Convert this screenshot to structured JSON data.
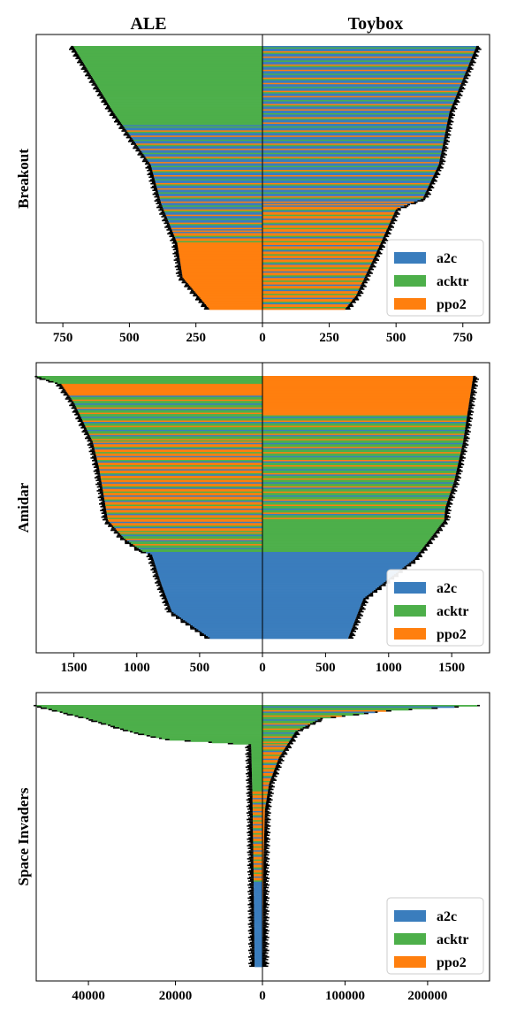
{
  "chart_data": [
    {
      "type": "bar",
      "orientation": "horizontal-butterfly",
      "game": "Breakout",
      "column_titles": [
        "ALE",
        "Toybox"
      ],
      "ylabel": "Breakout",
      "xlim": [
        -850,
        850
      ],
      "x_ticks": [
        {
          "value": -750,
          "label": "750"
        },
        {
          "value": -500,
          "label": "500"
        },
        {
          "value": -250,
          "label": "250"
        },
        {
          "value": 0,
          "label": "0"
        },
        {
          "value": 250,
          "label": "250"
        },
        {
          "value": 500,
          "label": "500"
        },
        {
          "value": 750,
          "label": "750"
        }
      ],
      "legend": {
        "location": "lower-right",
        "entries": [
          "a2c",
          "acktr",
          "ppo2"
        ]
      },
      "colors": {
        "a2c": "#3a7dbd",
        "acktr": "#4daf4a",
        "ppo2": "#ff7f0e",
        "error": "#000000"
      },
      "n_rows": 200,
      "ale": {
        "profile": [
          [
            0,
            -710
          ],
          [
            0.1,
            -650
          ],
          [
            0.25,
            -560
          ],
          [
            0.45,
            -420
          ],
          [
            0.6,
            -380
          ],
          [
            0.75,
            -320
          ],
          [
            0.88,
            -300
          ],
          [
            1,
            -200
          ]
        ],
        "bands": [
          [
            0,
            0.3,
            "acktr"
          ],
          [
            0.3,
            0.7,
            "mix_a2c"
          ],
          [
            0.7,
            0.75,
            "mix_ppo2"
          ],
          [
            0.75,
            1,
            "ppo2"
          ]
        ]
      },
      "toybox": {
        "profile": [
          [
            0,
            800
          ],
          [
            0.1,
            760
          ],
          [
            0.25,
            700
          ],
          [
            0.45,
            660
          ],
          [
            0.58,
            600
          ],
          [
            0.62,
            500
          ],
          [
            0.8,
            420
          ],
          [
            0.95,
            350
          ],
          [
            1,
            310
          ]
        ],
        "bands": [
          [
            0,
            0.6,
            "mix_a2c"
          ],
          [
            0.6,
            1,
            "mix_ppo2"
          ]
        ]
      }
    },
    {
      "type": "bar",
      "orientation": "horizontal-butterfly",
      "game": "Amidar",
      "ylabel": "Amidar",
      "xlim": [
        -1800,
        1800
      ],
      "x_ticks": [
        {
          "value": -1500,
          "label": "1500"
        },
        {
          "value": -1000,
          "label": "1000"
        },
        {
          "value": -500,
          "label": "500"
        },
        {
          "value": 0,
          "label": "0"
        },
        {
          "value": 500,
          "label": "500"
        },
        {
          "value": 1000,
          "label": "1000"
        },
        {
          "value": 1500,
          "label": "1500"
        }
      ],
      "legend": {
        "location": "lower-right",
        "entries": [
          "a2c",
          "acktr",
          "ppo2"
        ]
      },
      "colors": {
        "a2c": "#3a7dbd",
        "acktr": "#4daf4a",
        "ppo2": "#ff7f0e",
        "error": "#000000"
      },
      "n_rows": 200,
      "ale": {
        "profile": [
          [
            0,
            -1790
          ],
          [
            0.03,
            -1600
          ],
          [
            0.1,
            -1500
          ],
          [
            0.25,
            -1350
          ],
          [
            0.35,
            -1300
          ],
          [
            0.55,
            -1230
          ],
          [
            0.62,
            -1100
          ],
          [
            0.67,
            -950
          ],
          [
            0.68,
            -880
          ],
          [
            0.8,
            -800
          ],
          [
            0.9,
            -720
          ],
          [
            1,
            -420
          ]
        ],
        "bands": [
          [
            0,
            0.03,
            "acktr"
          ],
          [
            0.03,
            0.07,
            "ppo2"
          ],
          [
            0.07,
            0.25,
            "mix_acktr"
          ],
          [
            0.25,
            0.6,
            "mix_ppo2"
          ],
          [
            0.6,
            0.67,
            "mix_acktr"
          ],
          [
            0.67,
            1,
            "a2c"
          ]
        ]
      },
      "toybox": {
        "profile": [
          [
            0,
            1670
          ],
          [
            0.25,
            1590
          ],
          [
            0.4,
            1520
          ],
          [
            0.5,
            1450
          ],
          [
            0.55,
            1440
          ],
          [
            0.62,
            1330
          ],
          [
            0.7,
            1200
          ],
          [
            0.85,
            800
          ],
          [
            1,
            680
          ]
        ],
        "bands": [
          [
            0,
            0.15,
            "ppo2"
          ],
          [
            0.15,
            0.55,
            "mix_acktr"
          ],
          [
            0.55,
            0.55,
            "ppo2"
          ],
          [
            0.55,
            0.67,
            "acktr"
          ],
          [
            0.67,
            1,
            "a2c"
          ]
        ]
      }
    },
    {
      "type": "bar",
      "orientation": "horizontal-butterfly",
      "game": "Space Invaders",
      "ylabel": "Space Invaders",
      "xlim": [
        -55000,
        55000
      ],
      "x_ticks_left": [
        {
          "value": -40000,
          "label": "40000"
        },
        {
          "value": -20000,
          "label": "20000"
        },
        {
          "value": 0,
          "label": "0"
        }
      ],
      "x_ticks_right": [
        {
          "value": 100000,
          "label": "100000"
        },
        {
          "value": 200000,
          "label": "200000"
        }
      ],
      "xlim_left": [
        -52000,
        0
      ],
      "xlim_right": [
        0,
        275000
      ],
      "legend": {
        "location": "lower-right",
        "entries": [
          "a2c",
          "acktr",
          "ppo2"
        ]
      },
      "colors": {
        "a2c": "#3a7dbd",
        "acktr": "#4daf4a",
        "ppo2": "#ff7f0e",
        "error": "#000000"
      },
      "n_rows": 200,
      "ale": {
        "profile": [
          [
            0,
            -52000
          ],
          [
            0.05,
            -40000
          ],
          [
            0.1,
            -30000
          ],
          [
            0.13,
            -22000
          ],
          [
            0.15,
            -2600
          ],
          [
            0.35,
            -2300
          ],
          [
            0.7,
            -2000
          ],
          [
            1,
            -1800
          ]
        ],
        "bands": [
          [
            0,
            0.15,
            "acktr"
          ],
          [
            0.15,
            0.33,
            "acktr"
          ],
          [
            0.33,
            0.68,
            "mix_ppo2"
          ],
          [
            0.68,
            1,
            "a2c"
          ]
        ]
      },
      "toybox": {
        "profile": [
          [
            0,
            260000
          ],
          [
            0.02,
            150000
          ],
          [
            0.05,
            70000
          ],
          [
            0.1,
            40000
          ],
          [
            0.2,
            20000
          ],
          [
            0.3,
            8000
          ],
          [
            0.4,
            3000
          ],
          [
            0.6,
            1200
          ],
          [
            1,
            500
          ]
        ],
        "bands": [
          [
            0,
            0.15,
            "mix_acktr"
          ],
          [
            0.15,
            0.4,
            "mix_ppo2"
          ],
          [
            0.4,
            1,
            "ppo2"
          ]
        ]
      }
    }
  ]
}
